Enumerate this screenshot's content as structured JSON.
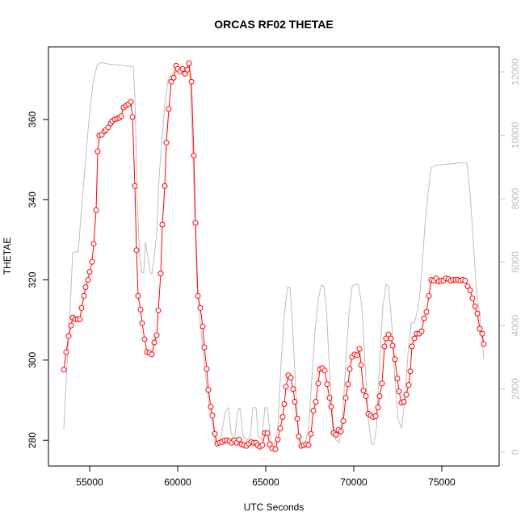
{
  "chart_data": {
    "type": "line",
    "title": "ORCAS RF02 THETAE",
    "xlabel": "UTC Seconds",
    "ylabel": "THETAE",
    "xlim": [
      52661,
      78257
    ],
    "ylim": [
      273.6,
      378.1
    ],
    "y2lim": [
      -434,
      12791
    ],
    "xticks": [
      55000,
      60000,
      65000,
      70000,
      75000
    ],
    "yticks": [
      280,
      300,
      320,
      340,
      360
    ],
    "y2ticks": [
      0,
      2000,
      4000,
      6000,
      8000,
      10000,
      12000
    ],
    "series": [
      {
        "color": "#bebebe",
        "axis": "y2",
        "markers": false,
        "x": [
          53532,
          53716,
          53899,
          54037,
          54174,
          54358,
          54495,
          54725,
          54954,
          55183,
          55413,
          55642,
          56101,
          56560,
          57018,
          57477,
          57569,
          57706,
          57844,
          57982,
          58073,
          58165,
          58303,
          58440,
          58532,
          58670,
          58807,
          58945,
          59083,
          59266,
          59450,
          59679,
          59908,
          60229,
          60550,
          60688,
          60826,
          60963,
          61101,
          61284,
          61468,
          61651,
          61835,
          62018,
          62156,
          62294,
          62477,
          62706,
          62890,
          63028,
          63211,
          63394,
          63532,
          63716,
          63945,
          64128,
          64266,
          64450,
          64587,
          64771,
          64954,
          65092,
          65275,
          65505,
          65688,
          65872,
          66055,
          66239,
          66376,
          66514,
          66697,
          66881,
          67064,
          67248,
          67431,
          67615,
          67798,
          67982,
          68165,
          68303,
          68440,
          68624,
          68807,
          68991,
          69174,
          69358,
          69541,
          69725,
          69908,
          70092,
          70275,
          70459,
          70642,
          70826,
          71009,
          71147,
          71284,
          71468,
          71651,
          71835,
          71972,
          72156,
          72339,
          72523,
          72706,
          72890,
          73073,
          73257,
          73440,
          73670,
          73853,
          74037,
          74220,
          74404,
          74679,
          75138,
          75596,
          76055,
          76422,
          76606,
          76789,
          76972,
          77156,
          77294,
          77385
        ],
        "values": [
          714,
          2806,
          4592,
          6301,
          6327,
          6327,
          7398,
          8929,
          10459,
          11607,
          12194,
          12296,
          12245,
          12219,
          12194,
          12168,
          11224,
          7908,
          6122,
          5663,
          5663,
          6633,
          6173,
          5663,
          5612,
          6173,
          6888,
          8673,
          9694,
          10969,
          11735,
          11939,
          11990,
          12040,
          12040,
          11862,
          9949,
          7653,
          5357,
          4082,
          3061,
          2041,
          1276,
          765,
          255,
          281,
          510,
          1276,
          1403,
          638,
          306,
          1276,
          1403,
          510,
          383,
          510,
          1403,
          1403,
          510,
          383,
          1403,
          1403,
          383,
          255,
          765,
          2806,
          4337,
          5204,
          5204,
          4082,
          2041,
          383,
          204,
          306,
          765,
          2296,
          3827,
          4847,
          5281,
          5230,
          4592,
          2551,
          1020,
          383,
          306,
          1020,
          2806,
          4337,
          5230,
          5306,
          5281,
          4592,
          2806,
          1020,
          255,
          255,
          765,
          2806,
          4592,
          5306,
          5230,
          4082,
          2296,
          1020,
          765,
          1531,
          3061,
          4082,
          4082,
          4592,
          5612,
          7143,
          8163,
          8980,
          9056,
          9082,
          9107,
          9133,
          9133,
          8163,
          6633,
          5102,
          4337,
          3571,
          2934
        ]
      },
      {
        "color": "#ff0000",
        "axis": "y",
        "markers": true,
        "x": [
          53532,
          53670,
          53807,
          53945,
          54037,
          54174,
          54312,
          54450,
          54541,
          54679,
          54771,
          54908,
          55000,
          55138,
          55229,
          55367,
          55459,
          55550,
          55688,
          55826,
          55917,
          56055,
          56193,
          56284,
          56422,
          56560,
          56697,
          56789,
          56927,
          57064,
          57202,
          57339,
          57431,
          57569,
          57661,
          57752,
          57890,
          57982,
          58119,
          58257,
          58394,
          58532,
          58670,
          58807,
          58899,
          59037,
          59128,
          59266,
          59358,
          59495,
          59633,
          59771,
          59908,
          60000,
          60138,
          60275,
          60413,
          60550,
          60642,
          60780,
          60917,
          61009,
          61147,
          61284,
          61422,
          61514,
          61651,
          61743,
          61881,
          61972,
          62110,
          62248,
          62385,
          62523,
          62661,
          62798,
          62936,
          63073,
          63211,
          63349,
          63486,
          63624,
          63761,
          63899,
          64037,
          64174,
          64312,
          64450,
          64541,
          64679,
          64817,
          64954,
          65092,
          65229,
          65367,
          65550,
          65688,
          65826,
          65963,
          66055,
          66147,
          66284,
          66422,
          66560,
          66651,
          66789,
          66881,
          67018,
          67156,
          67294,
          67431,
          67569,
          67706,
          67844,
          67982,
          68073,
          68211,
          68349,
          68486,
          68624,
          68716,
          68853,
          68991,
          69128,
          69266,
          69404,
          69541,
          69679,
          69771,
          69908,
          70046,
          70183,
          70321,
          70413,
          70550,
          70688,
          70826,
          70963,
          71101,
          71239,
          71376,
          71468,
          71606,
          71743,
          71835,
          71972,
          72110,
          72202,
          72339,
          72477,
          72569,
          72706,
          72844,
          72982,
          73119,
          73211,
          73303,
          73440,
          73578,
          73716,
          73853,
          73991,
          74128,
          74266,
          74404,
          74541,
          74679,
          74817,
          74954,
          75092,
          75229,
          75367,
          75505,
          75642,
          75780,
          75917,
          76055,
          76193,
          76330,
          76468,
          76606,
          76743,
          76881,
          77018,
          77156,
          77294,
          77385
        ],
        "values": [
          297.6,
          302,
          306,
          308.6,
          310.6,
          310.2,
          310.2,
          310.2,
          313,
          316,
          318.2,
          320,
          322,
          324.5,
          329,
          337.4,
          352,
          356,
          356.2,
          357,
          357.4,
          358,
          359,
          359.6,
          360,
          360.2,
          360.4,
          360.8,
          363,
          363.4,
          363.8,
          364.4,
          360.6,
          343.4,
          327.4,
          316,
          312.6,
          309.2,
          305.2,
          302,
          301.8,
          301.4,
          304.4,
          306.2,
          312.4,
          321.6,
          333.8,
          343.4,
          354.2,
          362.6,
          369.4,
          370.4,
          373.4,
          372.6,
          372,
          372.6,
          371.4,
          372.4,
          374,
          369.4,
          351,
          334.2,
          316,
          313,
          308.4,
          303.2,
          297.8,
          292.6,
          288.4,
          286.2,
          281.6,
          279.2,
          279.4,
          279.6,
          280,
          280,
          279.8,
          279.4,
          280,
          279.4,
          280.2,
          279,
          278.8,
          278.6,
          279.2,
          279.6,
          279.4,
          279.4,
          278.8,
          278.4,
          278.8,
          281.8,
          281.8,
          279,
          278,
          277.8,
          280.2,
          283,
          285.8,
          289,
          293.4,
          296.2,
          295.6,
          292.8,
          289.6,
          285.4,
          281,
          278.6,
          278.8,
          279,
          278.8,
          281.6,
          287.4,
          289.6,
          294.2,
          297.8,
          298,
          297.4,
          294,
          290.6,
          288.4,
          281.8,
          281.4,
          282.6,
          282.2,
          284.8,
          290.6,
          294,
          297.8,
          300.8,
          301.4,
          301.2,
          302.8,
          298.8,
          292.4,
          291,
          286.6,
          286.2,
          285.8,
          286,
          288.2,
          291,
          294.2,
          303.4,
          305.4,
          306.4,
          305.4,
          303.6,
          300.2,
          295.4,
          292.2,
          289.4,
          289.6,
          291.4,
          293.8,
          297.2,
          303.4,
          305.4,
          306.6,
          306.6,
          307.2,
          310.4,
          312,
          316,
          320,
          319.8,
          320.4,
          319.6,
          319.8,
          319.8,
          320.4,
          320.2,
          319.8,
          320,
          320,
          320,
          319.8,
          320,
          319.8,
          318.4,
          317.4,
          315.4,
          313.4,
          311.6,
          307.8,
          306.6,
          304
        ]
      }
    ],
    "y2_color": "#bebebe"
  }
}
